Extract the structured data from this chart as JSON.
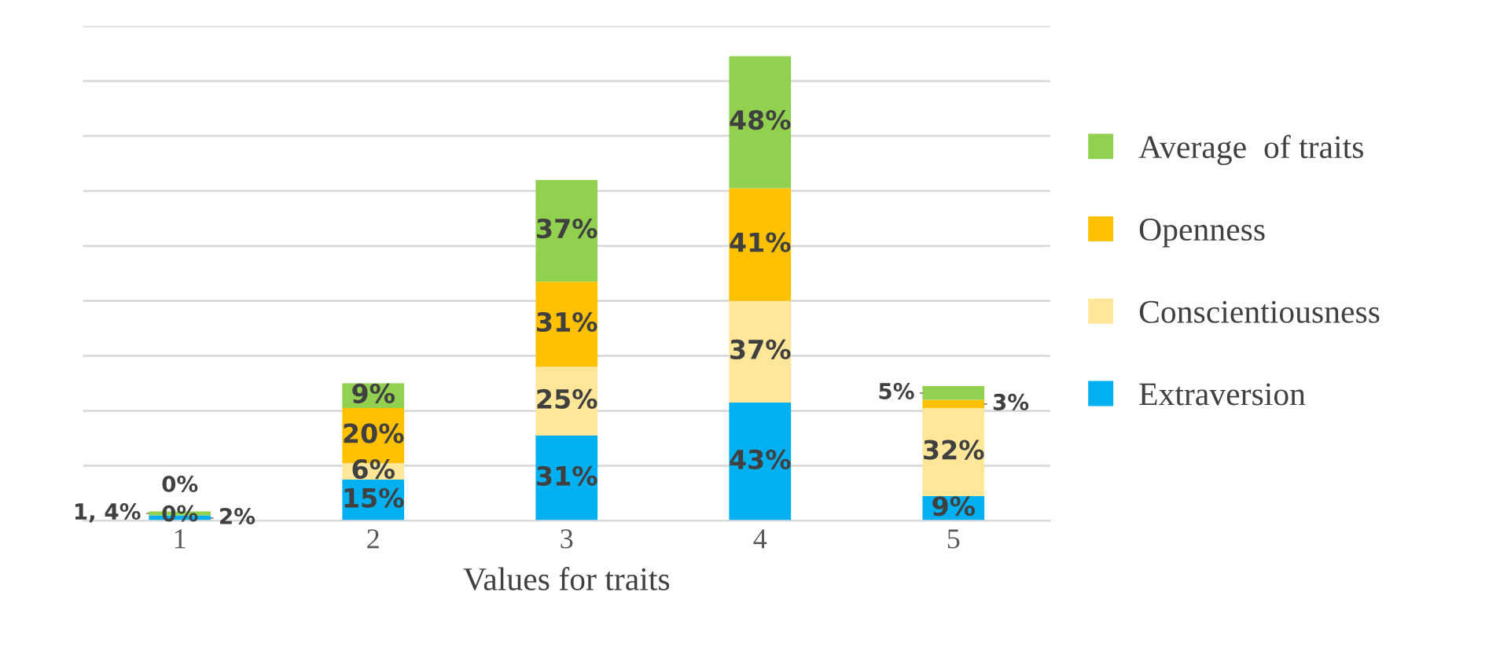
{
  "chart_data": {
    "type": "bar",
    "stacked": true,
    "xlabel": "Values for traits",
    "categories": [
      "1",
      "2",
      "3",
      "4",
      "5"
    ],
    "series": [
      {
        "name": "Extraversion",
        "color": "#00b0f0",
        "values": [
          2,
          15,
          31,
          43,
          9
        ],
        "value_labels": [
          "2%",
          "15%",
          "31%",
          "43%",
          "9%"
        ]
      },
      {
        "name": "Conscientiousness",
        "color": "#ffe699",
        "values": [
          0,
          6,
          25,
          37,
          32
        ],
        "value_labels": [
          "0%",
          "6%",
          "25%",
          "37%",
          "32%"
        ]
      },
      {
        "name": "Openness",
        "color": "#ffc000",
        "values": [
          0,
          20,
          31,
          41,
          3
        ],
        "value_labels": [
          "0%",
          "20%",
          "31%",
          "41%",
          "3%"
        ]
      },
      {
        "name": "Average  of traits",
        "color": "#92d050",
        "values": [
          1.4,
          9,
          37,
          48,
          5
        ],
        "value_labels": [
          "1, 4%",
          "9%",
          "37%",
          "48%",
          "5%"
        ]
      }
    ],
    "ylim": [
      0,
      180
    ],
    "yticks": [
      {
        "value": 0,
        "label": null
      },
      {
        "value": 20,
        "label": null
      },
      {
        "value": 40,
        "label": null
      },
      {
        "value": 60,
        "label": null
      },
      {
        "value": 80,
        "label": null
      },
      {
        "value": 100,
        "label": null
      },
      {
        "value": 120,
        "label": null
      },
      {
        "value": 140,
        "label": null
      },
      {
        "value": 160,
        "label": null
      },
      {
        "value": 180,
        "label": null
      }
    ],
    "tick_labels": "x",
    "grid": "y",
    "legend": "right"
  }
}
